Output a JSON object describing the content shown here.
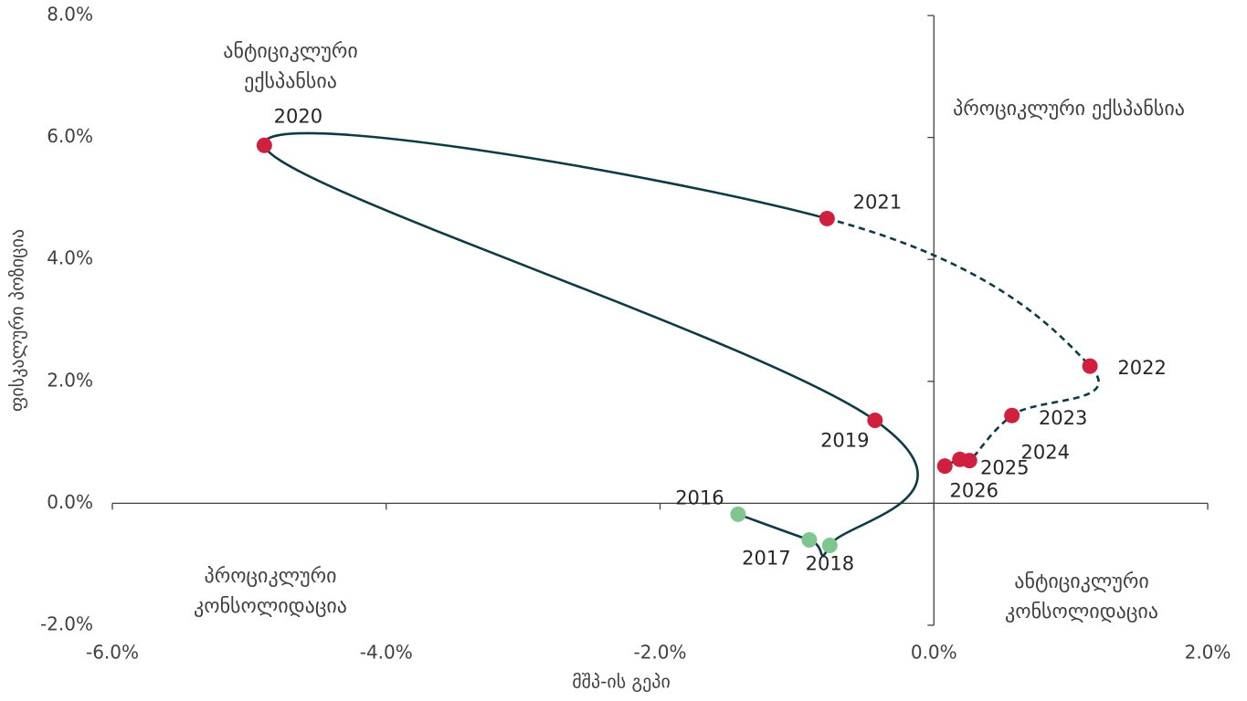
{
  "chart_data": {
    "type": "scatter",
    "x_label": "მშპ-ის გეპი",
    "y_label": "ფისკალური პოზიცია",
    "x": [
      -1.43,
      -0.91,
      -0.76,
      -0.43,
      -4.89,
      -0.78,
      1.14,
      0.57,
      0.26,
      0.19,
      0.08
    ],
    "values": [
      -0.18,
      -0.6,
      -0.69,
      1.36,
      5.87,
      4.67,
      2.25,
      1.44,
      0.7,
      0.72,
      0.61
    ],
    "labels": [
      "2016",
      "2017",
      "2018",
      "2019",
      "2020",
      "2021",
      "2022",
      "2023",
      "2024",
      "2025",
      "2026"
    ],
    "colors": [
      "#7fc58f",
      "#7fc58f",
      "#7fc58f",
      "#d0203f",
      "#d0203f",
      "#d0203f",
      "#d0203f",
      "#d0203f",
      "#d0203f",
      "#d0203f",
      "#d0203f"
    ],
    "line_color": "#0d3b45",
    "line_dash": [
      "solid",
      "solid",
      "solid",
      "solid",
      "solid",
      "dashed",
      "dashed",
      "dashed",
      "dashed",
      "dashed"
    ],
    "xlim": [
      -6,
      2
    ],
    "ylim": [
      -2,
      8
    ],
    "xticks": [
      {
        "value": -6,
        "label": "-6.0%"
      },
      {
        "value": -4,
        "label": "-4.0%"
      },
      {
        "value": -2,
        "label": "-2.0%"
      },
      {
        "value": 0,
        "label": "0.0%"
      },
      {
        "value": 2,
        "label": "2.0%"
      }
    ],
    "yticks": [
      {
        "value": -2,
        "label": "-2.0%"
      },
      {
        "value": 0,
        "label": "0.0%"
      },
      {
        "value": 2,
        "label": "2.0%"
      },
      {
        "value": 4,
        "label": "4.0%"
      },
      {
        "value": 6,
        "label": "6.0%"
      },
      {
        "value": 8,
        "label": "8.0%"
      }
    ],
    "annotations": [
      {
        "lines": [
          "ანტიციკლური",
          "ექსპანსია"
        ]
      },
      {
        "lines": [
          "პროციკლური ექსპანსია"
        ]
      },
      {
        "lines": [
          "პროციკლური",
          "კონსოლიდაცია"
        ]
      },
      {
        "lines": [
          "ანტიციკლური",
          "კონსოლიდაცია"
        ]
      }
    ]
  }
}
